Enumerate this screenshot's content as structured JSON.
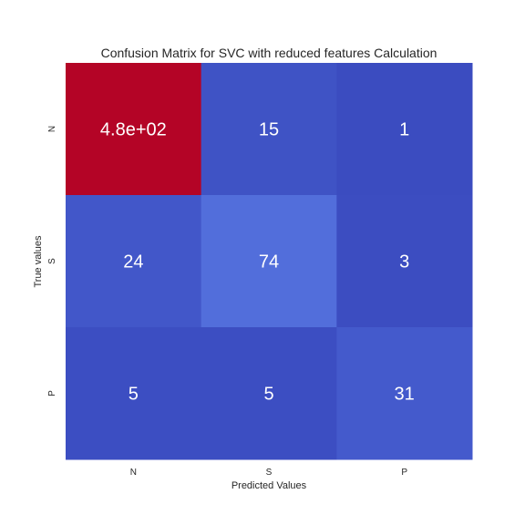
{
  "chart_data": {
    "type": "heatmap",
    "title": "Confusion Matrix for SVC with reduced features Calculation",
    "xlabel": "Predicted Values",
    "ylabel": "True values",
    "x_categories": [
      "N",
      "S",
      "P"
    ],
    "y_categories": [
      "N",
      "S",
      "P"
    ],
    "values": [
      [
        480,
        15,
        1
      ],
      [
        24,
        74,
        3
      ],
      [
        5,
        5,
        31
      ]
    ],
    "annotations": [
      [
        "4.8e+02",
        "15",
        "1"
      ],
      [
        "24",
        "74",
        "3"
      ],
      [
        "5",
        "5",
        "31"
      ]
    ],
    "colormap": "coolwarm",
    "colorbar": false,
    "colors": {
      "low": "#3b4cc0",
      "mid": "#dddcdc",
      "high": "#b40426",
      "annotation_text": "#ffffff"
    }
  }
}
